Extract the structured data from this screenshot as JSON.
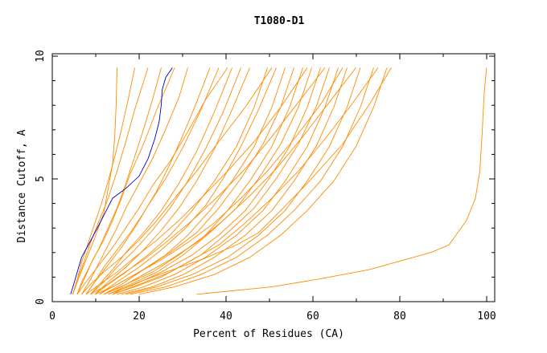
{
  "chart_data": {
    "type": "line",
    "title": "T1080-D1",
    "xlabel": "Percent of Residues (CA)",
    "ylabel": "Distance Cutoff, A",
    "xlim": [
      0,
      100
    ],
    "ylim": [
      0,
      10
    ],
    "x_ticks": [
      "0",
      "20",
      "40",
      "60",
      "80",
      "100"
    ],
    "y_ticks": [
      "0",
      "5",
      "10"
    ],
    "grid": false,
    "colors": {
      "highlight": "#0000cc",
      "models": "#ff8c00",
      "axes": "#000000"
    },
    "series": [
      {
        "role": "highlight",
        "x": [
          4.5,
          5.2,
          6,
          7,
          8.5,
          10,
          12,
          14,
          17,
          20,
          22,
          23.5,
          24.5,
          25,
          25.2,
          26,
          27.5
        ],
        "y": [
          0.3,
          0.7,
          1.2,
          1.8,
          2.3,
          2.8,
          3.5,
          4.2,
          4.6,
          5.1,
          5.8,
          6.6,
          7.3,
          8,
          8.6,
          9.1,
          9.5
        ]
      },
      {
        "role": "model",
        "x": [
          33,
          50,
          60,
          72,
          80,
          86,
          90,
          92,
          94,
          96,
          97,
          97.5,
          98,
          98.5
        ],
        "y": [
          0.3,
          0.6,
          0.9,
          1.3,
          1.7,
          2,
          2.3,
          2.8,
          3.3,
          4.2,
          5.3,
          6.8,
          8.5,
          9.5
        ]
      },
      {
        "role": "model",
        "x": [
          14,
          16,
          20,
          26,
          34,
          42,
          47,
          52,
          58,
          66,
          72,
          77
        ],
        "y": [
          0.3,
          0.5,
          0.8,
          1.2,
          1.7,
          2.3,
          2.8,
          3.7,
          4.8,
          6.4,
          8,
          9.5
        ]
      },
      {
        "role": "model",
        "x": [
          5,
          6,
          8,
          10,
          12,
          13,
          14,
          14.5,
          14.8,
          15
        ],
        "y": [
          0.3,
          0.8,
          1.7,
          2.6,
          3.6,
          4.6,
          5.6,
          6.8,
          8,
          9.5
        ]
      },
      {
        "role": "model",
        "x": [
          5,
          6,
          7.5,
          9,
          11,
          13,
          15,
          17,
          19,
          22
        ],
        "y": [
          0.3,
          0.9,
          1.6,
          2.4,
          3.3,
          4.2,
          5.3,
          6.5,
          7.8,
          9.5
        ]
      },
      {
        "role": "model",
        "x": [
          6,
          7,
          9,
          11,
          13,
          15,
          17,
          19,
          21,
          23,
          25
        ],
        "y": [
          0.3,
          0.8,
          1.5,
          2.2,
          3,
          3.8,
          4.8,
          5.9,
          7,
          8.2,
          9.5
        ]
      },
      {
        "role": "model",
        "x": [
          6,
          7.5,
          9.5,
          12,
          14,
          16,
          18,
          21,
          24,
          28
        ],
        "y": [
          0.3,
          0.9,
          1.7,
          2.5,
          3.3,
          4.2,
          5.2,
          6.4,
          7.8,
          9.5
        ]
      },
      {
        "role": "model",
        "x": [
          7,
          9,
          11,
          13,
          15,
          17,
          20,
          23,
          26,
          29,
          31
        ],
        "y": [
          0.3,
          0.9,
          1.6,
          2.3,
          3,
          3.8,
          4.8,
          5.8,
          7,
          8.3,
          9.5
        ]
      },
      {
        "role": "model",
        "x": [
          8,
          10,
          12,
          15,
          18,
          21,
          24,
          27,
          30,
          33,
          36
        ],
        "y": [
          0.3,
          0.8,
          1.4,
          2.1,
          2.8,
          3.6,
          4.5,
          5.6,
          6.8,
          8.1,
          9.5
        ]
      },
      {
        "role": "model",
        "x": [
          8,
          10,
          13,
          16,
          19,
          22,
          26,
          30,
          34,
          38
        ],
        "y": [
          0.3,
          0.8,
          1.5,
          2.2,
          3,
          3.9,
          5,
          6.3,
          7.8,
          9.5
        ]
      },
      {
        "role": "model",
        "x": [
          9,
          11,
          14,
          17,
          21,
          25,
          29,
          33,
          37,
          41
        ],
        "y": [
          0.3,
          0.7,
          1.3,
          2,
          2.8,
          3.7,
          4.8,
          6.1,
          7.7,
          9.5
        ]
      },
      {
        "role": "model",
        "x": [
          9,
          12,
          15,
          19,
          23,
          27,
          31,
          35,
          39,
          43
        ],
        "y": [
          0.3,
          0.8,
          1.4,
          2.1,
          2.9,
          3.8,
          4.9,
          6.2,
          7.7,
          9.5
        ]
      },
      {
        "role": "model",
        "x": [
          10,
          13,
          17,
          21,
          25,
          29,
          33,
          37,
          41,
          45
        ],
        "y": [
          0.3,
          0.8,
          1.4,
          2.1,
          2.9,
          3.8,
          4.9,
          6.2,
          7.8,
          9.5
        ]
      },
      {
        "role": "model",
        "x": [
          10,
          13,
          17,
          22,
          27,
          32,
          37,
          42,
          46,
          49
        ],
        "y": [
          0.3,
          0.7,
          1.2,
          1.9,
          2.7,
          3.7,
          4.9,
          6.3,
          7.9,
          9.5
        ]
      },
      {
        "role": "model",
        "x": [
          11,
          15,
          20,
          25,
          30,
          35,
          39,
          43,
          47,
          51
        ],
        "y": [
          0.3,
          0.8,
          1.4,
          2.1,
          2.9,
          3.9,
          5,
          6.3,
          7.8,
          9.5
        ]
      },
      {
        "role": "model",
        "x": [
          11,
          15,
          20,
          26,
          31,
          36,
          41,
          46,
          50,
          53
        ],
        "y": [
          0.3,
          0.7,
          1.2,
          1.9,
          2.7,
          3.7,
          4.9,
          6.3,
          7.9,
          9.5
        ]
      },
      {
        "role": "model",
        "x": [
          12,
          16,
          21,
          27,
          33,
          38,
          43,
          48,
          52,
          55
        ],
        "y": [
          0.3,
          0.7,
          1.3,
          2,
          2.8,
          3.8,
          5,
          6.4,
          7.9,
          9.5
        ]
      },
      {
        "role": "model",
        "x": [
          12,
          17,
          23,
          29,
          35,
          40,
          45,
          50,
          54,
          57
        ],
        "y": [
          0.3,
          0.7,
          1.2,
          1.9,
          2.7,
          3.7,
          4.9,
          6.3,
          7.9,
          9.5
        ]
      },
      {
        "role": "model",
        "x": [
          13,
          18,
          24,
          30,
          36,
          42,
          47,
          52,
          56,
          59
        ],
        "y": [
          0.3,
          0.7,
          1.2,
          1.9,
          2.8,
          3.8,
          5,
          6.4,
          7.9,
          9.5
        ]
      },
      {
        "role": "model",
        "x": [
          13,
          19,
          25,
          32,
          38,
          44,
          49,
          54,
          58,
          61
        ],
        "y": [
          0.3,
          0.7,
          1.2,
          1.9,
          2.7,
          3.7,
          4.9,
          6.3,
          7.9,
          9.5
        ]
      },
      {
        "role": "model",
        "x": [
          14,
          20,
          27,
          34,
          40,
          46,
          51,
          56,
          60,
          63
        ],
        "y": [
          0.3,
          0.7,
          1.2,
          1.9,
          2.8,
          3.8,
          5,
          6.4,
          7.9,
          9.5
        ]
      },
      {
        "role": "model",
        "x": [
          15,
          21,
          28,
          35,
          42,
          48,
          53,
          58,
          62,
          65
        ],
        "y": [
          0.3,
          0.6,
          1.1,
          1.8,
          2.7,
          3.7,
          4.9,
          6.3,
          7.9,
          9.5
        ]
      },
      {
        "role": "model",
        "x": [
          16,
          23,
          30,
          37,
          44,
          50,
          55,
          60,
          64,
          67
        ],
        "y": [
          0.3,
          0.6,
          1.1,
          1.8,
          2.7,
          3.7,
          4.9,
          6.3,
          7.9,
          9.5
        ]
      },
      {
        "role": "model",
        "x": [
          17,
          24,
          32,
          40,
          47,
          53,
          58,
          63,
          67,
          70
        ],
        "y": [
          0.3,
          0.6,
          1.1,
          1.8,
          2.7,
          3.7,
          4.9,
          6.3,
          7.9,
          9.5
        ]
      },
      {
        "role": "model",
        "x": [
          18,
          26,
          34,
          42,
          49,
          55,
          61,
          66,
          70,
          73
        ],
        "y": [
          0.3,
          0.6,
          1.1,
          1.8,
          2.7,
          3.7,
          4.9,
          6.3,
          7.9,
          9.5
        ]
      },
      {
        "role": "model",
        "x": [
          20,
          28,
          37,
          45,
          52,
          58,
          64,
          69,
          73,
          76
        ],
        "y": [
          0.3,
          0.6,
          1.1,
          1.8,
          2.7,
          3.7,
          4.9,
          6.3,
          7.9,
          9.5
        ]
      },
      {
        "role": "model",
        "x": [
          7,
          9,
          12,
          16,
          20,
          24,
          28,
          33,
          38,
          44,
          50
        ],
        "y": [
          0.3,
          0.7,
          1.2,
          1.8,
          2.5,
          3.3,
          4.2,
          5.3,
          6.5,
          7.9,
          9.5
        ]
      },
      {
        "role": "model",
        "x": [
          6,
          8,
          11,
          14,
          17,
          20,
          23,
          27,
          31,
          35,
          40
        ],
        "y": [
          0.3,
          0.8,
          1.5,
          2.2,
          3,
          3.8,
          4.7,
          5.7,
          6.9,
          8.2,
          9.5
        ]
      },
      {
        "role": "model",
        "x": [
          8,
          11,
          15,
          19,
          24,
          29,
          34,
          40,
          46,
          52,
          58
        ],
        "y": [
          0.3,
          0.7,
          1.2,
          1.8,
          2.5,
          3.3,
          4.2,
          5.3,
          6.5,
          7.9,
          9.5
        ]
      },
      {
        "role": "model",
        "x": [
          10,
          14,
          19,
          25,
          31,
          37,
          43,
          49,
          55,
          61,
          66
        ],
        "y": [
          0.3,
          0.6,
          1.1,
          1.7,
          2.4,
          3.2,
          4.2,
          5.3,
          6.6,
          8,
          9.5
        ]
      },
      {
        "role": "model",
        "x": [
          5,
          6,
          7,
          8.5,
          10,
          11.5,
          13,
          14.5,
          16,
          17.5,
          19
        ],
        "y": [
          0.3,
          0.9,
          1.6,
          2.4,
          3.2,
          4,
          4.9,
          5.9,
          7,
          8.2,
          9.5
        ]
      },
      {
        "role": "model",
        "x": [
          9,
          12,
          16,
          21,
          26,
          32,
          38,
          44,
          50,
          56,
          62
        ],
        "y": [
          0.3,
          0.6,
          1.1,
          1.7,
          2.4,
          3.3,
          4.3,
          5.4,
          6.7,
          8.1,
          9.5
        ]
      },
      {
        "role": "model",
        "x": [
          12,
          16,
          21,
          27,
          33,
          39,
          45,
          51,
          57,
          63,
          69
        ],
        "y": [
          0.3,
          0.6,
          1.1,
          1.7,
          2.4,
          3.3,
          4.3,
          5.4,
          6.7,
          8.1,
          9.5
        ]
      },
      {
        "role": "model",
        "x": [
          14,
          19,
          25,
          31,
          38,
          44,
          50,
          56,
          62,
          68,
          74
        ],
        "y": [
          0.3,
          0.6,
          1,
          1.6,
          2.3,
          3.2,
          4.2,
          5.3,
          6.6,
          8,
          9.5
        ]
      }
    ]
  }
}
